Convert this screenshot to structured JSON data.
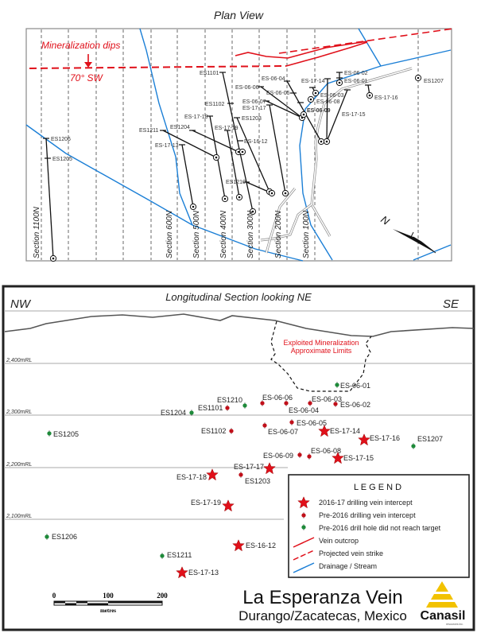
{
  "plan": {
    "title": "Plan View",
    "dip_text": "Mineralization dips",
    "dip_angle": "70° SW",
    "sections": [
      "Section 1100N",
      "Section 600N",
      "Section 500N",
      "Section 400N",
      "Section 300N",
      "Section 200N",
      "Section 100N"
    ],
    "holes": [
      "ES1206",
      "ES1205",
      "ES1211",
      "ES-17-13",
      "ES1204",
      "ES-17-18",
      "ES-17-19",
      "ES1101",
      "ES1102",
      "ES1203",
      "ES-16-12",
      "ES1210",
      "ES-17-17",
      "ES-06-07",
      "ES-06-06",
      "ES-06-04",
      "ES-06-05",
      "ES-06-09",
      "ES-17-14",
      "ES-17-15",
      "ES-06-02",
      "ES-06-01",
      "ES-06-03",
      "ES-06-08",
      "ES-17-16",
      "ES1207"
    ],
    "north": "N"
  },
  "section": {
    "title": "Longitudinal Section looking NE",
    "left_dir": "NW",
    "right_dir": "SE",
    "levels": [
      "2,400mRL",
      "2,300mRL",
      "2,200mRL",
      "2,100mRL"
    ],
    "exploited_line1": "Exploited Mineralization",
    "exploited_line2": "Approximate Limits",
    "points": [
      {
        "label": "ES-06-01",
        "type": "pre2016-no-target"
      },
      {
        "label": "ES1210",
        "type": "pre2016-no-target"
      },
      {
        "label": "ES1204",
        "type": "pre2016-no-target"
      },
      {
        "label": "ES1101",
        "type": "pre2016-intercept"
      },
      {
        "label": "ES-06-06",
        "type": "pre2016-intercept"
      },
      {
        "label": "ES-06-04",
        "type": "pre2016-intercept"
      },
      {
        "label": "ES-06-03",
        "type": "pre2016-intercept"
      },
      {
        "label": "ES-06-02",
        "type": "pre2016-intercept"
      },
      {
        "label": "ES-06-05",
        "type": "pre2016-intercept"
      },
      {
        "label": "ES-06-07",
        "type": "pre2016-intercept"
      },
      {
        "label": "ES1102",
        "type": "pre2016-intercept"
      },
      {
        "label": "ES-17-14",
        "type": "2016-17-intercept"
      },
      {
        "label": "ES-17-16",
        "type": "2016-17-intercept"
      },
      {
        "label": "ES1207",
        "type": "pre2016-no-target"
      },
      {
        "label": "ES1205",
        "type": "pre2016-no-target"
      },
      {
        "label": "ES-06-09",
        "type": "pre2016-intercept"
      },
      {
        "label": "ES-06-08",
        "type": "pre2016-intercept"
      },
      {
        "label": "ES-17-15",
        "type": "2016-17-intercept"
      },
      {
        "label": "ES-17-17",
        "type": "2016-17-intercept"
      },
      {
        "label": "ES-17-18",
        "type": "2016-17-intercept"
      },
      {
        "label": "ES1203",
        "type": "pre2016-intercept"
      },
      {
        "label": "ES-17-19",
        "type": "2016-17-intercept"
      },
      {
        "label": "ES1206",
        "type": "pre2016-no-target"
      },
      {
        "label": "ES-16-12",
        "type": "2016-17-intercept"
      },
      {
        "label": "ES1211",
        "type": "pre2016-no-target"
      },
      {
        "label": "ES-17-13",
        "type": "2016-17-intercept"
      }
    ]
  },
  "legend": {
    "title": "L E G E N D",
    "items": [
      "2016-17 drilling vein intercept",
      "Pre-2016 drilling vein intercept",
      "Pre-2016 drill hole did not reach target",
      "Vein outcrop",
      "Projected vein strike",
      "Drainage / Stream"
    ]
  },
  "scale": {
    "ticks": [
      "0",
      "100",
      "200"
    ],
    "unit": "metres"
  },
  "footer": {
    "title": "La Esperanza Vein",
    "subtitle": "Durango/Zacatecas, Mexico",
    "logo_text": "Canasil",
    "logo_sub": "resources inc."
  },
  "colors": {
    "red": "#e0101a",
    "blue": "#1b7fd6",
    "green": "#1e8a3a",
    "dark_red": "#c0101a",
    "logo_yellow": "#f2c200"
  }
}
